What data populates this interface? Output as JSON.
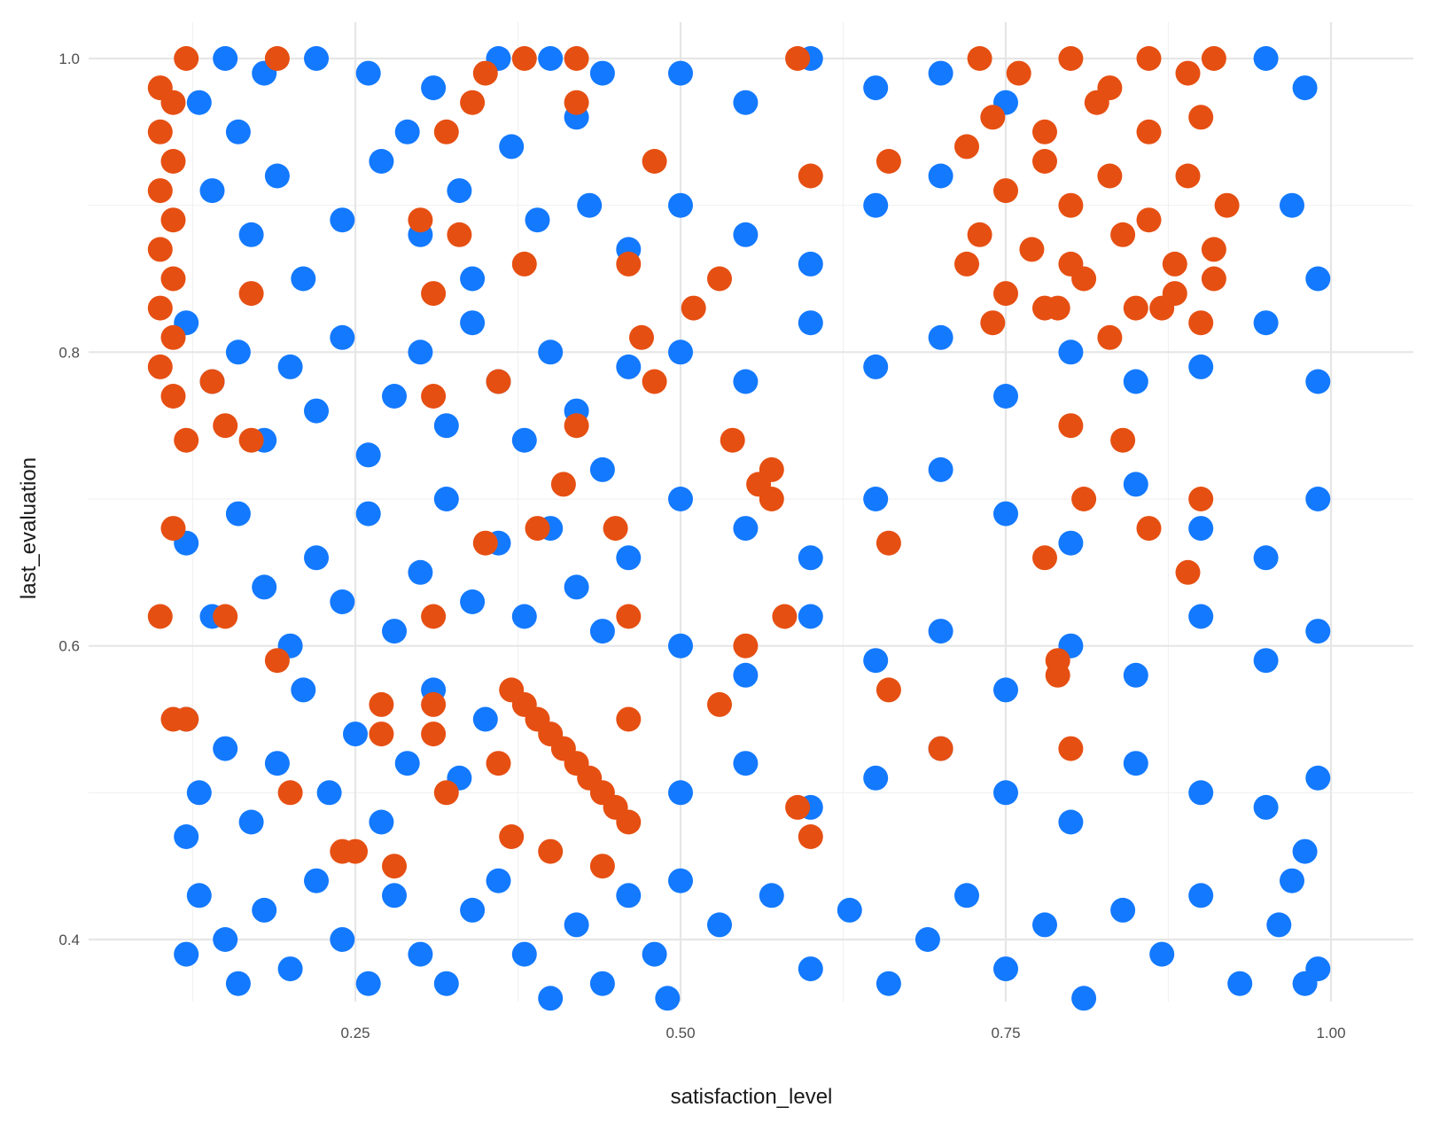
{
  "chart_data": {
    "type": "scatter",
    "title": "",
    "xlabel": "satisfaction_level",
    "ylabel": "last_evaluation",
    "xlim": [
      0.09,
      1.01
    ],
    "ylim": [
      0.36,
      1.0
    ],
    "x_ticks": [
      {
        "value": 0.25,
        "label": "0.25"
      },
      {
        "value": 0.5,
        "label": "0.50"
      },
      {
        "value": 0.75,
        "label": "0.75"
      },
      {
        "value": 1.0,
        "label": "1.00"
      }
    ],
    "y_ticks": [
      {
        "value": 0.4,
        "label": "0.4"
      },
      {
        "value": 0.6,
        "label": "0.6"
      },
      {
        "value": 0.8,
        "label": "0.8"
      },
      {
        "value": 1.0,
        "label": "1.0"
      }
    ],
    "grid": true,
    "legend": "none",
    "series": [
      {
        "color": "#1379FF",
        "points": [
          [
            0.13,
            0.97
          ],
          [
            0.14,
            0.91
          ],
          [
            0.15,
            1.0
          ],
          [
            0.16,
            0.95
          ],
          [
            0.17,
            0.88
          ],
          [
            0.18,
            0.99
          ],
          [
            0.19,
            0.92
          ],
          [
            0.21,
            0.85
          ],
          [
            0.22,
            1.0
          ],
          [
            0.24,
            0.89
          ],
          [
            0.26,
            0.99
          ],
          [
            0.27,
            0.93
          ],
          [
            0.29,
            0.95
          ],
          [
            0.3,
            0.88
          ],
          [
            0.31,
            0.98
          ],
          [
            0.33,
            0.91
          ],
          [
            0.34,
            0.85
          ],
          [
            0.36,
            1.0
          ],
          [
            0.37,
            0.94
          ],
          [
            0.39,
            0.89
          ],
          [
            0.4,
            1.0
          ],
          [
            0.42,
            0.96
          ],
          [
            0.43,
            0.9
          ],
          [
            0.44,
            0.99
          ],
          [
            0.46,
            0.87
          ],
          [
            0.12,
            0.82
          ],
          [
            0.14,
            0.78
          ],
          [
            0.16,
            0.8
          ],
          [
            0.18,
            0.74
          ],
          [
            0.2,
            0.79
          ],
          [
            0.22,
            0.76
          ],
          [
            0.24,
            0.81
          ],
          [
            0.26,
            0.73
          ],
          [
            0.28,
            0.77
          ],
          [
            0.3,
            0.8
          ],
          [
            0.32,
            0.75
          ],
          [
            0.34,
            0.82
          ],
          [
            0.36,
            0.78
          ],
          [
            0.38,
            0.74
          ],
          [
            0.4,
            0.8
          ],
          [
            0.42,
            0.76
          ],
          [
            0.44,
            0.72
          ],
          [
            0.46,
            0.79
          ],
          [
            0.12,
            0.67
          ],
          [
            0.14,
            0.62
          ],
          [
            0.16,
            0.69
          ],
          [
            0.18,
            0.64
          ],
          [
            0.2,
            0.6
          ],
          [
            0.22,
            0.66
          ],
          [
            0.24,
            0.63
          ],
          [
            0.26,
            0.69
          ],
          [
            0.28,
            0.61
          ],
          [
            0.3,
            0.65
          ],
          [
            0.32,
            0.7
          ],
          [
            0.34,
            0.63
          ],
          [
            0.36,
            0.67
          ],
          [
            0.38,
            0.62
          ],
          [
            0.4,
            0.68
          ],
          [
            0.42,
            0.64
          ],
          [
            0.44,
            0.61
          ],
          [
            0.46,
            0.66
          ],
          [
            0.12,
            0.55
          ],
          [
            0.13,
            0.5
          ],
          [
            0.15,
            0.53
          ],
          [
            0.17,
            0.48
          ],
          [
            0.19,
            0.52
          ],
          [
            0.21,
            0.57
          ],
          [
            0.23,
            0.5
          ],
          [
            0.25,
            0.54
          ],
          [
            0.27,
            0.48
          ],
          [
            0.29,
            0.52
          ],
          [
            0.31,
            0.57
          ],
          [
            0.33,
            0.51
          ],
          [
            0.35,
            0.55
          ],
          [
            0.13,
            0.43
          ],
          [
            0.15,
            0.4
          ],
          [
            0.16,
            0.37
          ],
          [
            0.18,
            0.42
          ],
          [
            0.2,
            0.38
          ],
          [
            0.22,
            0.44
          ],
          [
            0.24,
            0.4
          ],
          [
            0.26,
            0.37
          ],
          [
            0.28,
            0.43
          ],
          [
            0.3,
            0.39
          ],
          [
            0.32,
            0.37
          ],
          [
            0.34,
            0.42
          ],
          [
            0.36,
            0.44
          ],
          [
            0.38,
            0.39
          ],
          [
            0.4,
            0.36
          ],
          [
            0.42,
            0.41
          ],
          [
            0.44,
            0.37
          ],
          [
            0.46,
            0.43
          ],
          [
            0.48,
            0.39
          ],
          [
            0.49,
            0.36
          ],
          [
            0.5,
            0.99
          ],
          [
            0.55,
            0.97
          ],
          [
            0.6,
            1.0
          ],
          [
            0.65,
            0.98
          ],
          [
            0.7,
            0.99
          ],
          [
            0.75,
            0.97
          ],
          [
            0.95,
            1.0
          ],
          [
            0.98,
            0.98
          ],
          [
            0.97,
            0.9
          ],
          [
            0.99,
            0.85
          ],
          [
            0.5,
            0.9
          ],
          [
            0.55,
            0.88
          ],
          [
            0.6,
            0.86
          ],
          [
            0.65,
            0.9
          ],
          [
            0.7,
            0.92
          ],
          [
            0.5,
            0.8
          ],
          [
            0.55,
            0.78
          ],
          [
            0.6,
            0.82
          ],
          [
            0.65,
            0.79
          ],
          [
            0.7,
            0.81
          ],
          [
            0.75,
            0.77
          ],
          [
            0.8,
            0.8
          ],
          [
            0.85,
            0.78
          ],
          [
            0.9,
            0.79
          ],
          [
            0.95,
            0.82
          ],
          [
            0.99,
            0.78
          ],
          [
            0.5,
            0.7
          ],
          [
            0.55,
            0.68
          ],
          [
            0.6,
            0.66
          ],
          [
            0.65,
            0.7
          ],
          [
            0.7,
            0.72
          ],
          [
            0.75,
            0.69
          ],
          [
            0.8,
            0.67
          ],
          [
            0.85,
            0.71
          ],
          [
            0.9,
            0.68
          ],
          [
            0.95,
            0.66
          ],
          [
            0.99,
            0.7
          ],
          [
            0.5,
            0.6
          ],
          [
            0.55,
            0.58
          ],
          [
            0.6,
            0.62
          ],
          [
            0.65,
            0.59
          ],
          [
            0.7,
            0.61
          ],
          [
            0.75,
            0.57
          ],
          [
            0.8,
            0.6
          ],
          [
            0.85,
            0.58
          ],
          [
            0.9,
            0.62
          ],
          [
            0.95,
            0.59
          ],
          [
            0.99,
            0.61
          ],
          [
            0.5,
            0.5
          ],
          [
            0.55,
            0.52
          ],
          [
            0.6,
            0.49
          ],
          [
            0.65,
            0.51
          ],
          [
            0.7,
            0.53
          ],
          [
            0.75,
            0.5
          ],
          [
            0.8,
            0.48
          ],
          [
            0.85,
            0.52
          ],
          [
            0.9,
            0.5
          ],
          [
            0.95,
            0.49
          ],
          [
            0.99,
            0.51
          ],
          [
            0.5,
            0.44
          ],
          [
            0.53,
            0.41
          ],
          [
            0.57,
            0.43
          ],
          [
            0.6,
            0.38
          ],
          [
            0.63,
            0.42
          ],
          [
            0.66,
            0.37
          ],
          [
            0.69,
            0.4
          ],
          [
            0.72,
            0.43
          ],
          [
            0.75,
            0.38
          ],
          [
            0.78,
            0.41
          ],
          [
            0.81,
            0.36
          ],
          [
            0.84,
            0.42
          ],
          [
            0.87,
            0.39
          ],
          [
            0.9,
            0.43
          ],
          [
            0.93,
            0.37
          ],
          [
            0.96,
            0.41
          ],
          [
            0.99,
            0.38
          ],
          [
            0.12,
            0.39
          ],
          [
            0.12,
            0.47
          ],
          [
            0.97,
            0.44
          ],
          [
            0.98,
            0.37
          ],
          [
            0.98,
            0.46
          ]
        ]
      },
      {
        "color": "#E64F12",
        "points": [
          [
            0.1,
            0.98
          ],
          [
            0.11,
            0.97
          ],
          [
            0.1,
            0.95
          ],
          [
            0.11,
            0.93
          ],
          [
            0.1,
            0.91
          ],
          [
            0.11,
            0.89
          ],
          [
            0.1,
            0.87
          ],
          [
            0.11,
            0.85
          ],
          [
            0.1,
            0.83
          ],
          [
            0.11,
            0.81
          ],
          [
            0.1,
            0.79
          ],
          [
            0.11,
            0.77
          ],
          [
            0.12,
            1.0
          ],
          [
            0.19,
            1.0
          ],
          [
            0.38,
            1.0
          ],
          [
            0.42,
            1.0
          ],
          [
            0.59,
            1.0
          ],
          [
            0.35,
            0.99
          ],
          [
            0.32,
            0.95
          ],
          [
            0.34,
            0.97
          ],
          [
            0.42,
            0.97
          ],
          [
            0.48,
            0.93
          ],
          [
            0.6,
            0.92
          ],
          [
            0.66,
            0.93
          ],
          [
            0.3,
            0.89
          ],
          [
            0.33,
            0.88
          ],
          [
            0.38,
            0.86
          ],
          [
            0.17,
            0.84
          ],
          [
            0.31,
            0.84
          ],
          [
            0.46,
            0.86
          ],
          [
            0.53,
            0.85
          ],
          [
            0.51,
            0.83
          ],
          [
            0.47,
            0.81
          ],
          [
            0.48,
            0.78
          ],
          [
            0.14,
            0.78
          ],
          [
            0.31,
            0.77
          ],
          [
            0.36,
            0.78
          ],
          [
            0.12,
            0.74
          ],
          [
            0.15,
            0.75
          ],
          [
            0.17,
            0.74
          ],
          [
            0.42,
            0.75
          ],
          [
            0.41,
            0.71
          ],
          [
            0.54,
            0.74
          ],
          [
            0.57,
            0.72
          ],
          [
            0.56,
            0.71
          ],
          [
            0.57,
            0.7
          ],
          [
            0.11,
            0.68
          ],
          [
            0.39,
            0.68
          ],
          [
            0.35,
            0.67
          ],
          [
            0.45,
            0.68
          ],
          [
            0.66,
            0.67
          ],
          [
            0.1,
            0.62
          ],
          [
            0.15,
            0.62
          ],
          [
            0.31,
            0.62
          ],
          [
            0.46,
            0.62
          ],
          [
            0.58,
            0.62
          ],
          [
            0.55,
            0.6
          ],
          [
            0.53,
            0.56
          ],
          [
            0.66,
            0.57
          ],
          [
            0.7,
            0.53
          ],
          [
            0.79,
            0.59
          ],
          [
            0.79,
            0.58
          ],
          [
            0.8,
            0.53
          ],
          [
            0.11,
            0.55
          ],
          [
            0.12,
            0.55
          ],
          [
            0.19,
            0.59
          ],
          [
            0.27,
            0.56
          ],
          [
            0.27,
            0.54
          ],
          [
            0.31,
            0.56
          ],
          [
            0.31,
            0.54
          ],
          [
            0.2,
            0.5
          ],
          [
            0.32,
            0.5
          ],
          [
            0.25,
            0.46
          ],
          [
            0.24,
            0.46
          ],
          [
            0.28,
            0.45
          ],
          [
            0.59,
            0.49
          ],
          [
            0.6,
            0.47
          ],
          [
            0.8,
            0.75
          ],
          [
            0.84,
            0.74
          ],
          [
            0.81,
            0.7
          ],
          [
            0.86,
            0.68
          ],
          [
            0.89,
            0.65
          ],
          [
            0.9,
            0.7
          ],
          [
            0.78,
            0.66
          ],
          [
            0.37,
            0.57
          ],
          [
            0.38,
            0.56
          ],
          [
            0.39,
            0.55
          ],
          [
            0.4,
            0.54
          ],
          [
            0.41,
            0.53
          ],
          [
            0.42,
            0.52
          ],
          [
            0.43,
            0.51
          ],
          [
            0.44,
            0.5
          ],
          [
            0.45,
            0.49
          ],
          [
            0.46,
            0.48
          ],
          [
            0.37,
            0.47
          ],
          [
            0.4,
            0.46
          ],
          [
            0.44,
            0.45
          ],
          [
            0.36,
            0.52
          ],
          [
            0.46,
            0.55
          ],
          [
            0.73,
            1.0
          ],
          [
            0.76,
            0.99
          ],
          [
            0.8,
            1.0
          ],
          [
            0.83,
            0.98
          ],
          [
            0.86,
            1.0
          ],
          [
            0.89,
            0.99
          ],
          [
            0.91,
            1.0
          ],
          [
            0.74,
            0.96
          ],
          [
            0.78,
            0.95
          ],
          [
            0.82,
            0.97
          ],
          [
            0.86,
            0.95
          ],
          [
            0.9,
            0.96
          ],
          [
            0.72,
            0.94
          ],
          [
            0.75,
            0.91
          ],
          [
            0.78,
            0.93
          ],
          [
            0.8,
            0.9
          ],
          [
            0.83,
            0.92
          ],
          [
            0.86,
            0.89
          ],
          [
            0.89,
            0.92
          ],
          [
            0.92,
            0.9
          ],
          [
            0.73,
            0.88
          ],
          [
            0.77,
            0.87
          ],
          [
            0.8,
            0.86
          ],
          [
            0.84,
            0.88
          ],
          [
            0.88,
            0.86
          ],
          [
            0.91,
            0.87
          ],
          [
            0.72,
            0.86
          ],
          [
            0.75,
            0.84
          ],
          [
            0.78,
            0.83
          ],
          [
            0.81,
            0.85
          ],
          [
            0.85,
            0.83
          ],
          [
            0.88,
            0.84
          ],
          [
            0.91,
            0.85
          ],
          [
            0.74,
            0.82
          ],
          [
            0.79,
            0.83
          ],
          [
            0.83,
            0.81
          ],
          [
            0.87,
            0.83
          ],
          [
            0.9,
            0.82
          ]
        ]
      }
    ]
  }
}
